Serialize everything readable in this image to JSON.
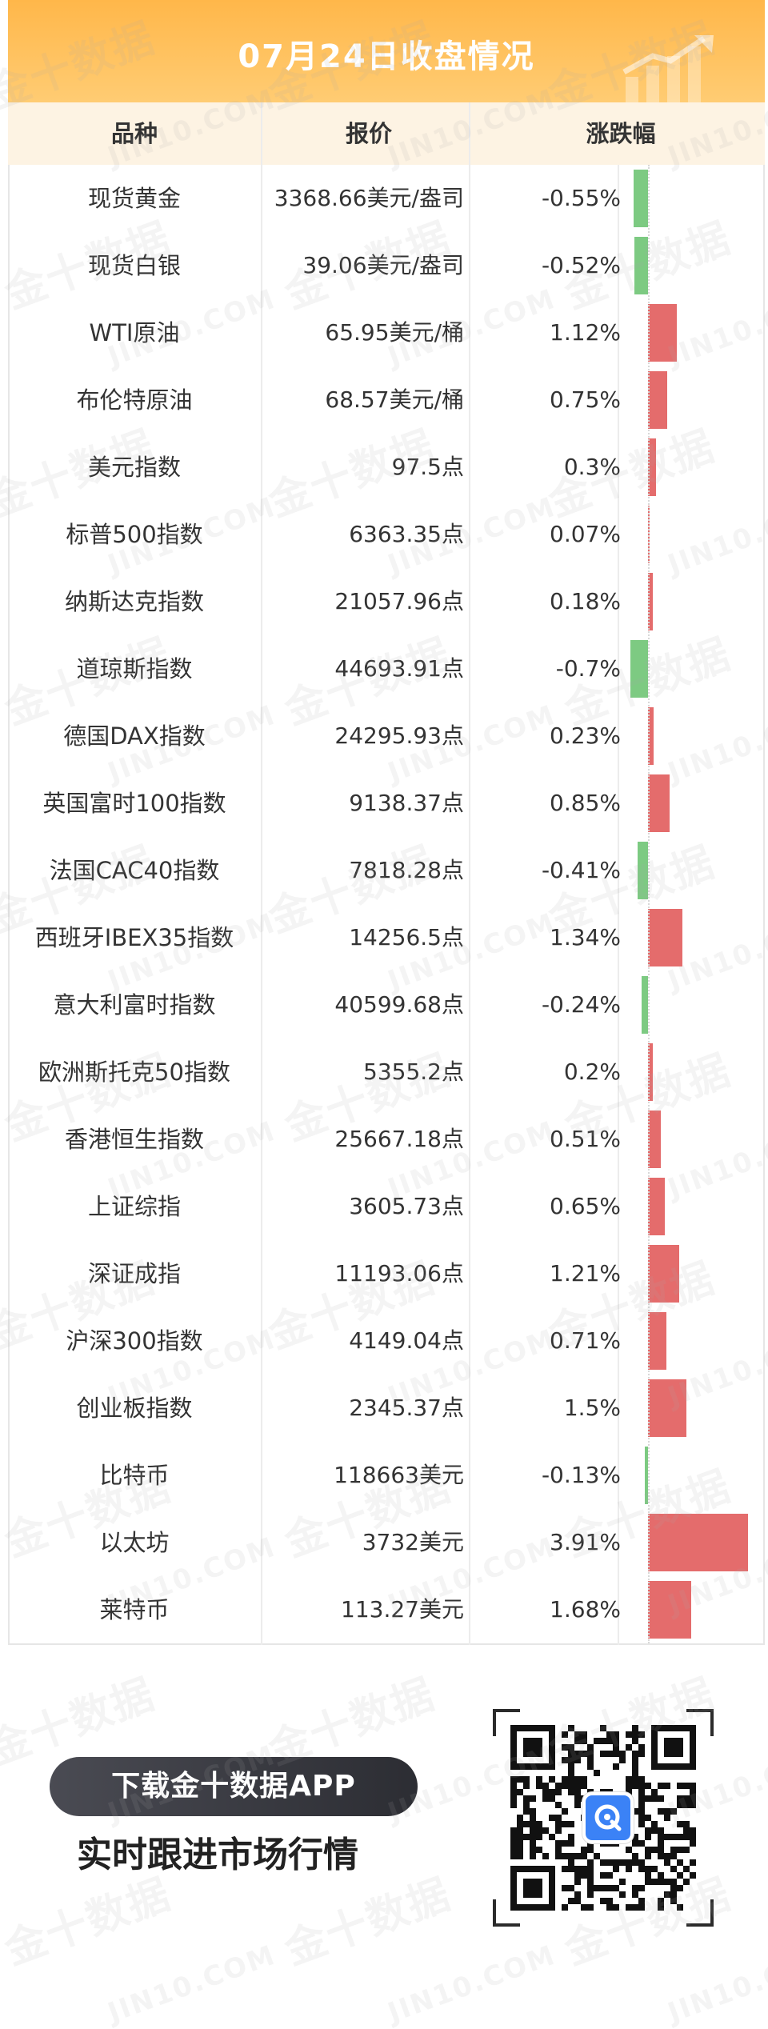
{
  "title": "07月24日收盘情况",
  "header": {
    "name": "品种",
    "price": "报价",
    "change": "涨跌幅"
  },
  "rows": [
    {
      "name": "现货黄金",
      "price": "3368.66美元/盎司",
      "change": "-0.55%",
      "value": -0.55
    },
    {
      "name": "现货白银",
      "price": "39.06美元/盎司",
      "change": "-0.52%",
      "value": -0.52
    },
    {
      "name": "WTI原油",
      "price": "65.95美元/桶",
      "change": "1.12%",
      "value": 1.12
    },
    {
      "name": "布伦特原油",
      "price": "68.57美元/桶",
      "change": "0.75%",
      "value": 0.75
    },
    {
      "name": "美元指数",
      "price": "97.5点",
      "change": "0.3%",
      "value": 0.3
    },
    {
      "name": "标普500指数",
      "price": "6363.35点",
      "change": "0.07%",
      "value": 0.07
    },
    {
      "name": "纳斯达克指数",
      "price": "21057.96点",
      "change": "0.18%",
      "value": 0.18
    },
    {
      "name": "道琼斯指数",
      "price": "44693.91点",
      "change": "-0.7%",
      "value": -0.7
    },
    {
      "name": "德国DAX指数",
      "price": "24295.93点",
      "change": "0.23%",
      "value": 0.23
    },
    {
      "name": "英国富时100指数",
      "price": "9138.37点",
      "change": "0.85%",
      "value": 0.85
    },
    {
      "name": "法国CAC40指数",
      "price": "7818.28点",
      "change": "-0.41%",
      "value": -0.41
    },
    {
      "name": "西班牙IBEX35指数",
      "price": "14256.5点",
      "change": "1.34%",
      "value": 1.34
    },
    {
      "name": "意大利富时指数",
      "price": "40599.68点",
      "change": "-0.24%",
      "value": -0.24
    },
    {
      "name": "欧洲斯托克50指数",
      "price": "5355.2点",
      "change": "0.2%",
      "value": 0.2
    },
    {
      "name": "香港恒生指数",
      "price": "25667.18点",
      "change": "0.51%",
      "value": 0.51
    },
    {
      "name": "上证综指",
      "price": "3605.73点",
      "change": "0.65%",
      "value": 0.65
    },
    {
      "name": "深证成指",
      "price": "11193.06点",
      "change": "1.21%",
      "value": 1.21
    },
    {
      "name": "沪深300指数",
      "price": "4149.04点",
      "change": "0.71%",
      "value": 0.71
    },
    {
      "name": "创业板指数",
      "price": "2345.37点",
      "change": "1.5%",
      "value": 1.5
    },
    {
      "name": "比特币",
      "price": "118663美元",
      "change": "-0.13%",
      "value": -0.13
    },
    {
      "name": "以太坊",
      "price": "3732美元",
      "change": "3.91%",
      "value": 3.91
    },
    {
      "name": "莱特币",
      "price": "113.27美元",
      "change": "1.68%",
      "value": 1.68
    }
  ],
  "watermark": {
    "cn": "金十数据",
    "en": "JIN10.COM"
  },
  "promo": {
    "button": "下载金十数据APP",
    "slogan": "实时跟进市场行情"
  },
  "colors": {
    "up": "#e46c6c",
    "down": "#7dca82",
    "title_bg": "#ffb74a",
    "header_bg": "#fdf3e3"
  },
  "icons": {
    "title_art": "rising-chart-icon",
    "qr": "qr-code-icon",
    "qr_logo": "jin10-logo-icon"
  }
}
